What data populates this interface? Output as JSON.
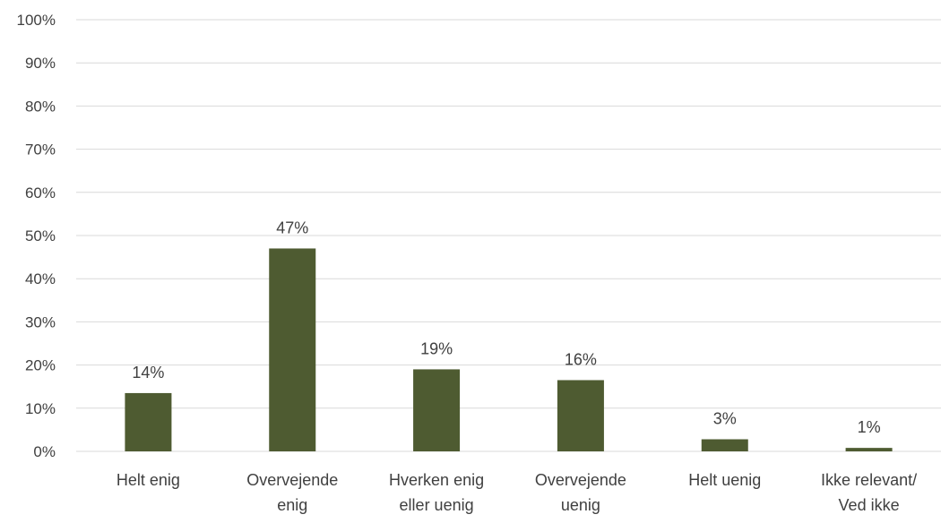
{
  "chart_data": {
    "type": "bar",
    "title": "",
    "xlabel": "",
    "ylabel": "",
    "categories": [
      [
        "Helt enig"
      ],
      [
        "Overvejende",
        "enig"
      ],
      [
        "Hverken enig",
        "eller uenig"
      ],
      [
        "Overvejende",
        "uenig"
      ],
      [
        "Helt uenig"
      ],
      [
        "Ikke relevant/",
        "Ved ikke"
      ]
    ],
    "values": [
      13.5,
      47,
      19,
      16.5,
      2.8,
      0.8
    ],
    "data_labels": [
      "14%",
      "47%",
      "19%",
      "16%",
      "3%",
      "1%"
    ],
    "ylim": [
      0,
      100
    ],
    "yticks": [
      0,
      10,
      20,
      30,
      40,
      50,
      60,
      70,
      80,
      90,
      100
    ],
    "ytick_labels": [
      "0%",
      "10%",
      "20%",
      "30%",
      "40%",
      "50%",
      "60%",
      "70%",
      "80%",
      "90%",
      "100%"
    ],
    "bar_color": "#4e5b31",
    "grid_color": "#d9d9d9",
    "text_color": "#404040",
    "grid": true,
    "legend": "none"
  }
}
